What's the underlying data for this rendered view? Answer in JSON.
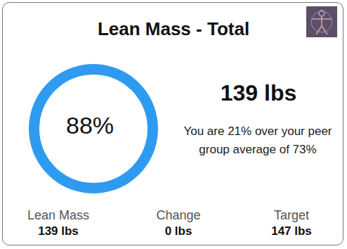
{
  "title": "Lean Mass - Total",
  "chart_data": {
    "type": "pie",
    "values": [
      88
    ],
    "value_labels": [
      "88%"
    ],
    "colors": [
      "#2f9bf0"
    ],
    "data_labels": true
  },
  "headline": "139 lbs",
  "text": "You are 21% over your peer group average of 73%",
  "stats": [
    {
      "label": "Lean Mass",
      "value": "139 lbs"
    },
    {
      "label": "Change",
      "value": "0 lbs"
    },
    {
      "label": "Target",
      "value": "147 lbs"
    }
  ]
}
